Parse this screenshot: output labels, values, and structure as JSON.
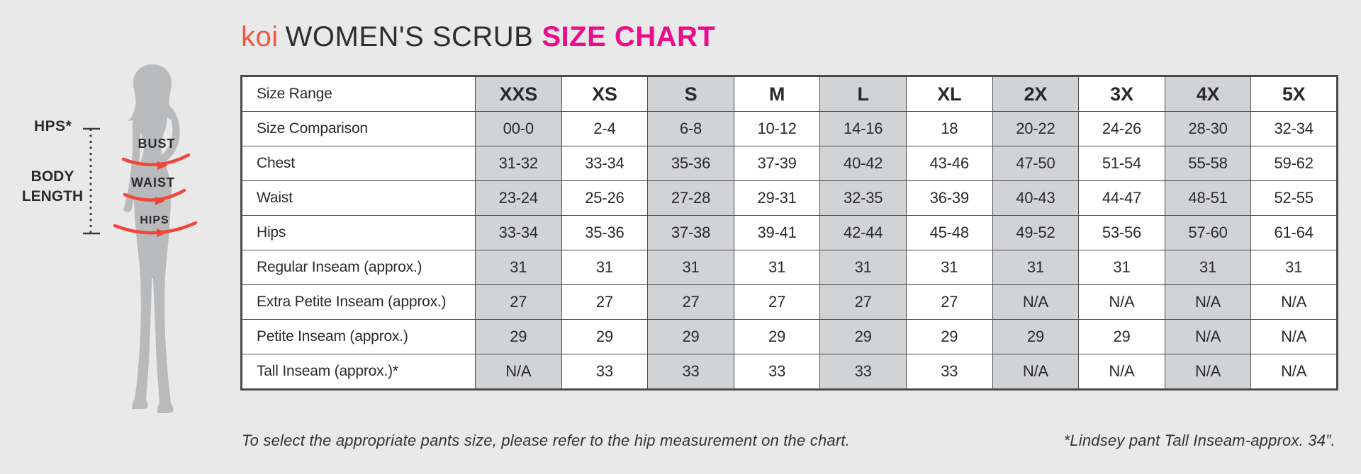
{
  "title": {
    "brand": "koi",
    "main": "WOMEN'S SCRUB",
    "highlight": "SIZE CHART",
    "brand_color": "#f2563e",
    "highlight_color": "#ec0b8b"
  },
  "figure": {
    "hps_label": "HPS*",
    "body_length_label": "BODY LENGTH",
    "bust_label": "BUST",
    "waist_label": "WAIST",
    "hips_label": "HIPS",
    "silhouette_color": "#b9babc",
    "arrow_color": "#f0473a"
  },
  "table": {
    "header_label": "Size Range",
    "columns": [
      "XXS",
      "XS",
      "S",
      "M",
      "L",
      "XL",
      "2X",
      "3X",
      "4X",
      "5X"
    ],
    "shaded_columns": [
      0,
      2,
      4,
      6,
      8
    ],
    "shade_color": "#d2d3d5",
    "border_color": "#4b4b4d",
    "rows": [
      {
        "label": "Size Comparison",
        "values": [
          "00-0",
          "2-4",
          "6-8",
          "10-12",
          "14-16",
          "18",
          "20-22",
          "24-26",
          "28-30",
          "32-34"
        ]
      },
      {
        "label": "Chest",
        "values": [
          "31-32",
          "33-34",
          "35-36",
          "37-39",
          "40-42",
          "43-46",
          "47-50",
          "51-54",
          "55-58",
          "59-62"
        ]
      },
      {
        "label": "Waist",
        "values": [
          "23-24",
          "25-26",
          "27-28",
          "29-31",
          "32-35",
          "36-39",
          "40-43",
          "44-47",
          "48-51",
          "52-55"
        ]
      },
      {
        "label": "Hips",
        "values": [
          "33-34",
          "35-36",
          "37-38",
          "39-41",
          "42-44",
          "45-48",
          "49-52",
          "53-56",
          "57-60",
          "61-64"
        ]
      },
      {
        "label": "Regular Inseam (approx.)",
        "values": [
          "31",
          "31",
          "31",
          "31",
          "31",
          "31",
          "31",
          "31",
          "31",
          "31"
        ]
      },
      {
        "label": "Extra Petite Inseam (approx.)",
        "values": [
          "27",
          "27",
          "27",
          "27",
          "27",
          "27",
          "N/A",
          "N/A",
          "N/A",
          "N/A"
        ]
      },
      {
        "label": "Petite Inseam (approx.)",
        "values": [
          "29",
          "29",
          "29",
          "29",
          "29",
          "29",
          "29",
          "29",
          "N/A",
          "N/A"
        ]
      },
      {
        "label": "Tall Inseam (approx.)*",
        "values": [
          "N/A",
          "33",
          "33",
          "33",
          "33",
          "33",
          "N/A",
          "N/A",
          "N/A",
          "N/A"
        ]
      }
    ]
  },
  "footer": {
    "note_left": "To select the appropriate pants size, please refer to the hip measurement on the chart.",
    "note_right": "*Lindsey pant Tall Inseam-approx. 34”."
  }
}
